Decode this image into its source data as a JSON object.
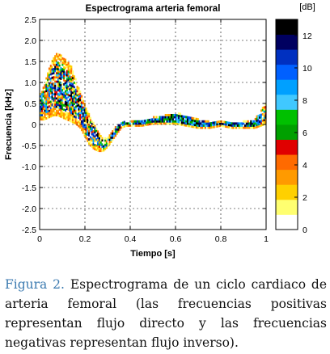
{
  "chart_data": {
    "type": "heatmap",
    "title": "Espectrograma arteria femoral",
    "xlabel": "Tiempo [s]",
    "ylabel": "Frecuencia [kHz]",
    "xlim": [
      0,
      1
    ],
    "ylim": [
      -2.5,
      2.5
    ],
    "xticks": [
      "0",
      "0.2",
      "0.4",
      "0.6",
      "0.8",
      "1"
    ],
    "yticks": [
      "2.5",
      "2.0",
      "1.5",
      "1.0",
      "0.5",
      "0",
      "-0.5",
      "-1.0",
      "-1.5",
      "-2.0",
      "-2.5"
    ],
    "grid": "dashed",
    "colorbar": {
      "unit": "[dB]",
      "ticks": [
        "12",
        "10",
        "8",
        "6",
        "4",
        "2",
        "0"
      ],
      "range": [
        0,
        13
      ],
      "colors": [
        "#ffffff",
        "#ffff70",
        "#ffd000",
        "#ff9a00",
        "#ff6a00",
        "#e00000",
        "#00a000",
        "#00c000",
        "#40c8ff",
        "#00a0ff",
        "#0060ff",
        "#0030c0",
        "#000060",
        "#000000"
      ]
    },
    "spectral_envelope": {
      "time_s": [
        0.0,
        0.02,
        0.04,
        0.06,
        0.08,
        0.1,
        0.12,
        0.14,
        0.16,
        0.18,
        0.2,
        0.22,
        0.24,
        0.26,
        0.28,
        0.3,
        0.32,
        0.34,
        0.36,
        0.38,
        0.4,
        0.45,
        0.5,
        0.55,
        0.6,
        0.65,
        0.7,
        0.75,
        0.8,
        0.85,
        0.9,
        0.95,
        1.0
      ],
      "upper_kHz": [
        0.7,
        0.9,
        1.3,
        1.55,
        1.7,
        1.6,
        1.5,
        1.35,
        1.05,
        0.75,
        0.45,
        0.2,
        0.0,
        -0.2,
        -0.35,
        -0.35,
        -0.2,
        -0.05,
        0.05,
        0.05,
        0.05,
        0.1,
        0.15,
        0.2,
        0.25,
        0.2,
        0.1,
        0.05,
        0.05,
        0.05,
        0.05,
        0.1,
        0.5
      ],
      "lower_kHz": [
        0.1,
        0.1,
        0.15,
        0.2,
        0.2,
        0.15,
        0.1,
        0.05,
        0.0,
        -0.1,
        -0.3,
        -0.5,
        -0.6,
        -0.65,
        -0.65,
        -0.55,
        -0.4,
        -0.25,
        -0.1,
        -0.05,
        -0.05,
        -0.05,
        0.0,
        0.0,
        0.0,
        -0.05,
        -0.1,
        -0.1,
        -0.05,
        -0.1,
        -0.1,
        -0.1,
        0.0
      ]
    }
  },
  "caption": {
    "label": "Figura 2.",
    "text": "Espectrograma de un ciclo cardiaco de arteria femoral (las frecuencias positivas representan flujo directo y las frecuencias negativas representan flujo inverso)."
  }
}
